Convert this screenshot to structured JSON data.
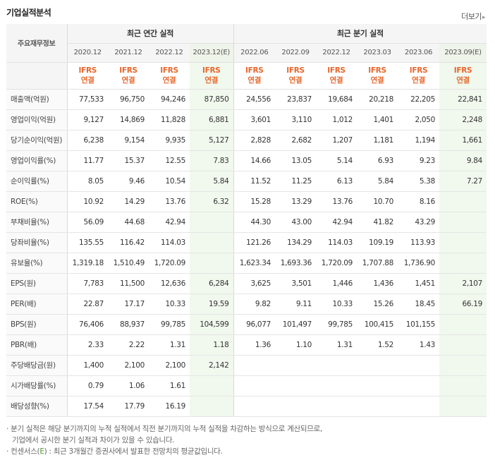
{
  "header": {
    "title": "기업실적분석",
    "more_label": "더보기"
  },
  "table": {
    "label_header": "주요재무정보",
    "group_annual": "최근 연간 실적",
    "group_quarter": "최근 분기 실적",
    "periods": [
      "2020.12",
      "2021.12",
      "2022.12",
      "2023.12(E)",
      "2022.06",
      "2022.09",
      "2022.12",
      "2023.03",
      "2023.06",
      "2023.09(E)"
    ],
    "ifrs_label": "IFRS",
    "basis_label": "연결",
    "rows": [
      {
        "label": "매출액(억원)",
        "values": [
          "77,533",
          "96,750",
          "94,246",
          "87,850",
          "24,556",
          "23,837",
          "19,684",
          "20,218",
          "22,205",
          "22,841"
        ]
      },
      {
        "label": "영업이익(억원)",
        "values": [
          "9,127",
          "14,869",
          "11,828",
          "6,881",
          "3,601",
          "3,110",
          "1,012",
          "1,401",
          "2,050",
          "2,248"
        ]
      },
      {
        "label": "당기순이익(억원)",
        "values": [
          "6,238",
          "9,154",
          "9,935",
          "5,127",
          "2,828",
          "2,682",
          "1,207",
          "1,181",
          "1,194",
          "1,661"
        ]
      },
      {
        "label": "영업이익률(%)",
        "values": [
          "11.77",
          "15.37",
          "12.55",
          "7.83",
          "14.66",
          "13.05",
          "5.14",
          "6.93",
          "9.23",
          "9.84"
        ]
      },
      {
        "label": "순이익률(%)",
        "values": [
          "8.05",
          "9.46",
          "10.54",
          "5.84",
          "11.52",
          "11.25",
          "6.13",
          "5.84",
          "5.38",
          "7.27"
        ]
      },
      {
        "label": "ROE(%)",
        "values": [
          "10.92",
          "14.29",
          "13.76",
          "6.32",
          "15.28",
          "13.29",
          "13.76",
          "10.70",
          "8.16",
          ""
        ]
      },
      {
        "label": "부채비율(%)",
        "values": [
          "56.09",
          "44.68",
          "42.94",
          "",
          "44.30",
          "43.00",
          "42.94",
          "41.82",
          "43.29",
          ""
        ]
      },
      {
        "label": "당좌비율(%)",
        "values": [
          "135.55",
          "116.42",
          "114.03",
          "",
          "121.26",
          "134.29",
          "114.03",
          "109.19",
          "113.93",
          ""
        ]
      },
      {
        "label": "유보율(%)",
        "values": [
          "1,319.18",
          "1,510.49",
          "1,720.09",
          "",
          "1,623.34",
          "1,693.36",
          "1,720.09",
          "1,707.88",
          "1,736.90",
          ""
        ]
      },
      {
        "label": "EPS(원)",
        "values": [
          "7,783",
          "11,500",
          "12,636",
          "6,284",
          "3,625",
          "3,501",
          "1,446",
          "1,436",
          "1,451",
          "2,107"
        ]
      },
      {
        "label": "PER(배)",
        "values": [
          "22.87",
          "17.17",
          "10.33",
          "19.59",
          "9.82",
          "9.11",
          "10.33",
          "15.26",
          "18.45",
          "66.19"
        ]
      },
      {
        "label": "BPS(원)",
        "values": [
          "76,406",
          "88,937",
          "99,785",
          "104,599",
          "96,077",
          "101,497",
          "99,785",
          "100,415",
          "101,155",
          ""
        ]
      },
      {
        "label": "PBR(배)",
        "values": [
          "2.33",
          "2.22",
          "1.31",
          "1.18",
          "1.36",
          "1.10",
          "1.31",
          "1.52",
          "1.43",
          ""
        ]
      },
      {
        "label": "주당배당금(원)",
        "values": [
          "1,400",
          "2,100",
          "2,100",
          "2,142",
          "",
          "",
          "",
          "",
          "",
          ""
        ]
      },
      {
        "label": "시가배당률(%)",
        "values": [
          "0.79",
          "1.06",
          "1.61",
          "",
          "",
          "",
          "",
          "",
          "",
          ""
        ]
      },
      {
        "label": "배당성향(%)",
        "values": [
          "17.54",
          "17.79",
          "16.19",
          "",
          "",
          "",
          "",
          "",
          "",
          ""
        ]
      }
    ]
  },
  "notes": {
    "line1": "분기 실적은 해당 분기까지의 누적 실적에서 직전 분기까지의 누적 실적을 차감하는 방식으로 계산되므로,",
    "line2": "기업에서 공시한 분기 실적과 차이가 있을 수 있습니다.",
    "line3_prefix": "컨센서스(",
    "line3_e": "E",
    "line3_suffix": ") : 최근 3개월간 증권사에서 발표한 전망치의 평균값입니다."
  },
  "colors": {
    "ifrs_orange": "#e8672c",
    "estimate_bg": "#f1f8ee",
    "estimate_text": "#4a9c2c"
  }
}
